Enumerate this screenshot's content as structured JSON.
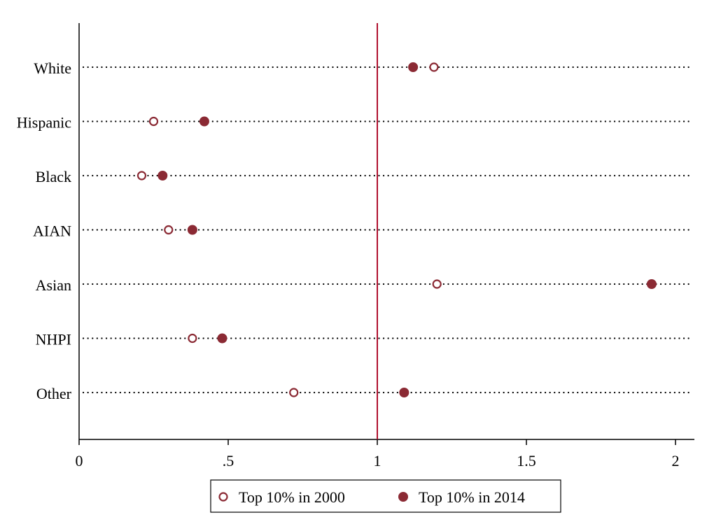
{
  "chart_data": {
    "type": "scatter",
    "categories": [
      "White",
      "Hispanic",
      "Black",
      "AIAN",
      "Asian",
      "NHPI",
      "Other"
    ],
    "series": [
      {
        "name": "Top 10% in 2000",
        "marker": "hollow-circle",
        "values": [
          1.19,
          0.25,
          0.21,
          0.3,
          1.2,
          0.38,
          0.72
        ]
      },
      {
        "name": "Top 10% in 2014",
        "marker": "filled-circle",
        "values": [
          1.12,
          0.42,
          0.28,
          0.38,
          1.92,
          0.48,
          1.09
        ]
      }
    ],
    "xticks": [
      {
        "value": 0,
        "label": "0"
      },
      {
        "value": 0.5,
        "label": ".5"
      },
      {
        "value": 1,
        "label": "1"
      },
      {
        "value": 1.5,
        "label": "1.5"
      },
      {
        "value": 2,
        "label": "2"
      }
    ],
    "xlim": [
      0,
      2.06
    ],
    "reference_line": 1,
    "title": "",
    "xlabel": "",
    "ylabel": "",
    "legend_position": "bottom",
    "grid": "dotted horizontal lines per category"
  },
  "colors": {
    "marker": "#8b2a34",
    "reference_line": "#b0102e",
    "axis": "#000000",
    "dotted_line": "#000000"
  }
}
